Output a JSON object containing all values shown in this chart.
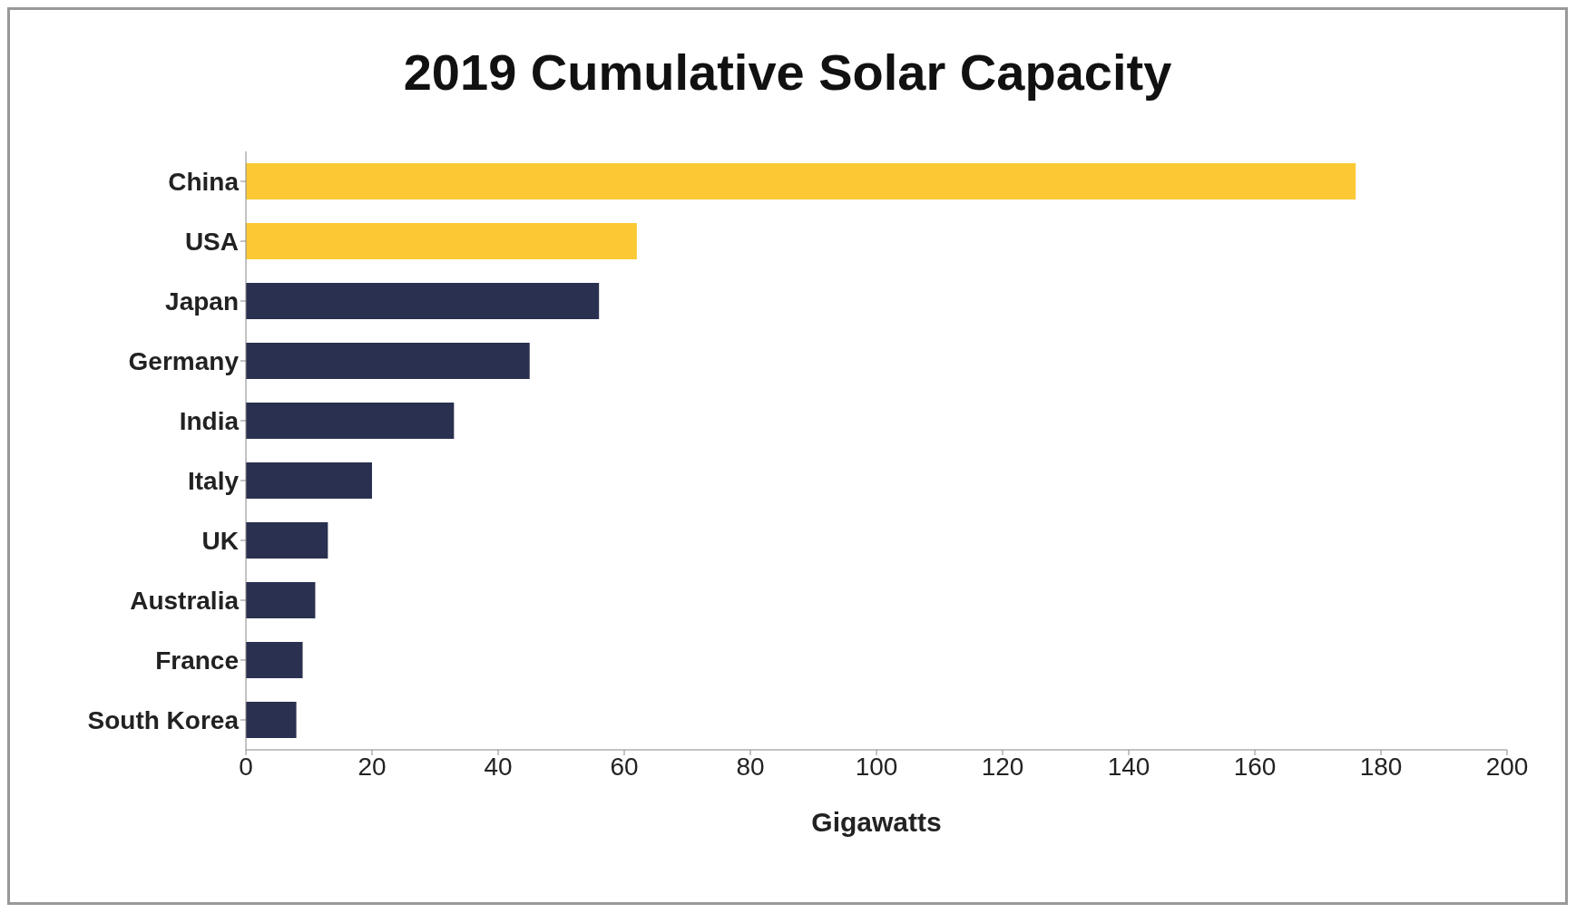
{
  "chart_data": {
    "type": "bar",
    "orientation": "horizontal",
    "title": "2019 Cumulative Solar Capacity",
    "xlabel": "Gigawatts",
    "categories": [
      "China",
      "USA",
      "Japan",
      "Germany",
      "India",
      "Italy",
      "UK",
      "Australia",
      "France",
      "South Korea"
    ],
    "values": [
      176,
      62,
      56,
      45,
      33,
      20,
      13,
      11,
      9,
      8
    ],
    "colors": [
      "#fcc935",
      "#fcc935",
      "#2a304f",
      "#2a304f",
      "#2a304f",
      "#2a304f",
      "#2a304f",
      "#2a304f",
      "#2a304f",
      "#2a304f"
    ],
    "xlim": [
      0,
      200
    ],
    "xticks": [
      0,
      20,
      40,
      60,
      80,
      100,
      120,
      140,
      160,
      180,
      200
    ],
    "grid": false,
    "legend": false
  }
}
